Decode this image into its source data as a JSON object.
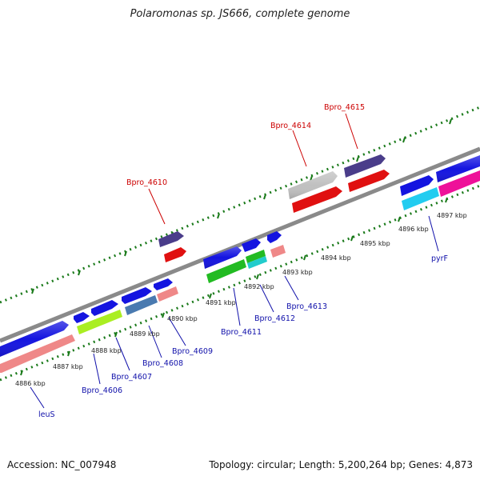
{
  "title": "Polaromonas sp. JS666, complete genome",
  "footer": {
    "accession": "Accession: NC_007948",
    "summary": "Topology: circular; Length: 5,200,264 bp; Genes: 4,873"
  },
  "colors": {
    "backbone": "#8c8c8c",
    "ticks": "#1a7a1a",
    "label_red": "#cc0000",
    "label_blue": "#1010aa"
  },
  "ticks": [
    "4886 kbp",
    "4887 kbp",
    "4888 kbp",
    "4889 kbp",
    "4890 kbp",
    "4891 kbp",
    "4892 kbp",
    "4893 kbp",
    "4894 kbp",
    "4895 kbp",
    "4896 kbp",
    "4897 kbp"
  ],
  "labels_top": [
    "Bpro_4610",
    "Bpro_4614",
    "Bpro_4615"
  ],
  "labels_bottom": [
    "leuS",
    "Bpro_4606",
    "Bpro_4607",
    "Bpro_4608",
    "Bpro_4609",
    "Bpro_4611",
    "Bpro_4612",
    "Bpro_4613",
    "pyrF"
  ]
}
